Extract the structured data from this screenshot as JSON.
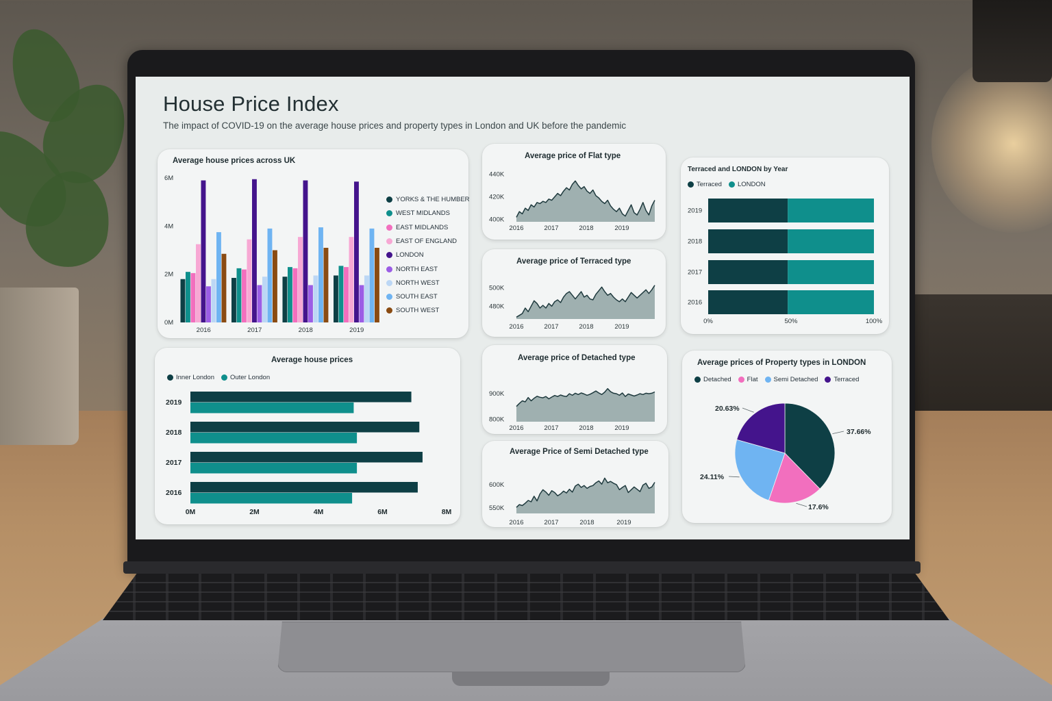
{
  "dashboard": {
    "title": "House Price Index",
    "subtitle": "The impact of COVID-19 on the average house prices and property types in London and UK before the pandemic"
  },
  "colors": {
    "teal_dark": "#0e3f45",
    "teal": "#0f8f8c",
    "area_fill": "#9fb0b0",
    "area_line": "#1f3a3e",
    "pink": "#f26fbe",
    "light_pink": "#f7a8d4",
    "purple": "#44148c",
    "violet": "#9b5de5",
    "pale_blue": "#bcd7f5",
    "sky_blue": "#6fb4f2",
    "brown": "#8a4b12"
  },
  "chart_data": [
    {
      "id": "uk_regions",
      "type": "bar",
      "title": "Average house prices across UK",
      "categories": [
        "2016",
        "2017",
        "2018",
        "2019"
      ],
      "y_ticks": [
        "0M",
        "2M",
        "4M",
        "6M"
      ],
      "ylim": [
        0,
        6000000
      ],
      "legend_position": "right",
      "series": [
        {
          "name": "YORKS & THE HUMBER",
          "color": "#0e3f45",
          "values": [
            1800000,
            1850000,
            1900000,
            1950000
          ]
        },
        {
          "name": "WEST MIDLANDS",
          "color": "#0f8f8c",
          "values": [
            2100000,
            2250000,
            2300000,
            2350000
          ]
        },
        {
          "name": "EAST MIDLANDS",
          "color": "#f26fbe",
          "values": [
            2050000,
            2200000,
            2250000,
            2300000
          ]
        },
        {
          "name": "EAST OF ENGLAND",
          "color": "#f7a8d4",
          "values": [
            3250000,
            3450000,
            3550000,
            3550000
          ]
        },
        {
          "name": "LONDON",
          "color": "#44148c",
          "values": [
            5900000,
            5950000,
            5900000,
            5850000
          ]
        },
        {
          "name": "NORTH EAST",
          "color": "#9b5de5",
          "values": [
            1500000,
            1550000,
            1550000,
            1550000
          ]
        },
        {
          "name": "NORTH WEST",
          "color": "#bcd7f5",
          "values": [
            1800000,
            1900000,
            1950000,
            1950000
          ]
        },
        {
          "name": "SOUTH EAST",
          "color": "#6fb4f2",
          "values": [
            3750000,
            3900000,
            3950000,
            3900000
          ]
        },
        {
          "name": "SOUTH WEST",
          "color": "#8a4b12",
          "values": [
            2850000,
            3000000,
            3100000,
            3100000
          ]
        }
      ]
    },
    {
      "id": "flat",
      "type": "area",
      "title": "Average price of Flat type",
      "x_ticks": [
        "2016",
        "2017",
        "2018",
        "2019"
      ],
      "y_ticks": [
        "400K",
        "420K",
        "440K"
      ],
      "ylim": [
        398000,
        445000
      ],
      "values": [
        402000,
        407000,
        405000,
        410000,
        408000,
        413000,
        411000,
        415000,
        414000,
        416000,
        415000,
        418000,
        417000,
        420000,
        423000,
        421000,
        425000,
        428000,
        426000,
        431000,
        434000,
        430000,
        427000,
        429000,
        425000,
        423000,
        426000,
        421000,
        419000,
        416000,
        414000,
        417000,
        412000,
        409000,
        407000,
        410000,
        405000,
        403000,
        408000,
        413000,
        406000,
        404000,
        409000,
        415000,
        408000,
        404000,
        412000,
        417000
      ]
    },
    {
      "id": "terraced",
      "type": "area",
      "title": "Average price of Terraced type",
      "x_ticks": [
        "2016",
        "2017",
        "2018",
        "2019"
      ],
      "y_ticks": [
        "480K",
        "500K"
      ],
      "ylim": [
        466000,
        520000
      ],
      "values": [
        468000,
        470000,
        472000,
        478000,
        474000,
        480000,
        486000,
        483000,
        478000,
        481000,
        478000,
        483000,
        480000,
        485000,
        487000,
        484000,
        490000,
        494000,
        496000,
        492000,
        488000,
        492000,
        496000,
        490000,
        492000,
        488000,
        487000,
        493000,
        497000,
        501000,
        496000,
        492000,
        494000,
        490000,
        487000,
        485000,
        488000,
        485000,
        490000,
        495000,
        492000,
        489000,
        492000,
        495000,
        498000,
        494000,
        498000,
        503000
      ]
    },
    {
      "id": "detached",
      "type": "area",
      "title": "Average price of Detached type",
      "x_ticks": [
        "2016",
        "2017",
        "2018",
        "2019"
      ],
      "y_ticks": [
        "800K",
        "900K"
      ],
      "ylim": [
        790000,
        1000000
      ],
      "values": [
        850000,
        862000,
        872000,
        868000,
        885000,
        872000,
        882000,
        890000,
        886000,
        884000,
        889000,
        880000,
        887000,
        893000,
        889000,
        895000,
        891000,
        889000,
        900000,
        894000,
        902000,
        897000,
        903000,
        899000,
        894000,
        898000,
        904000,
        911000,
        903000,
        897000,
        906000,
        920000,
        908000,
        902000,
        900000,
        894000,
        903000,
        889000,
        899000,
        895000,
        891000,
        895000,
        900000,
        897000,
        902000,
        900000,
        902000,
        907000
      ]
    },
    {
      "id": "semi_detached",
      "type": "area",
      "title": "Average Price of Semi Detached type",
      "x_ticks": [
        "2016",
        "2017",
        "2018",
        "2019"
      ],
      "y_ticks": [
        "550K",
        "600K"
      ],
      "ylim": [
        538000,
        650000
      ],
      "values": [
        551000,
        557000,
        555000,
        560000,
        566000,
        563000,
        575000,
        565000,
        580000,
        589000,
        584000,
        577000,
        587000,
        583000,
        576000,
        580000,
        586000,
        582000,
        590000,
        584000,
        597000,
        601000,
        594000,
        598000,
        592000,
        596000,
        598000,
        604000,
        608000,
        601000,
        614000,
        604000,
        607000,
        603000,
        600000,
        589000,
        594000,
        598000,
        583000,
        589000,
        595000,
        590000,
        585000,
        599000,
        603000,
        592000,
        595000,
        605000
      ]
    },
    {
      "id": "terraced_london",
      "type": "bar",
      "orientation": "horizontal",
      "stacked": "percent",
      "title": "Terraced and LONDON by Year",
      "categories": [
        "2019",
        "2018",
        "2017",
        "2016"
      ],
      "x_ticks": [
        "0%",
        "50%",
        "100%"
      ],
      "legend_position": "top-left",
      "series": [
        {
          "name": "Terraced",
          "color": "#0e3f45",
          "values": [
            48,
            48,
            48,
            48
          ]
        },
        {
          "name": "LONDON",
          "color": "#0f8f8c",
          "values": [
            52,
            52,
            52,
            52
          ]
        }
      ]
    },
    {
      "id": "inner_outer",
      "type": "bar",
      "orientation": "horizontal",
      "title": "Average house prices",
      "categories": [
        "2019",
        "2018",
        "2017",
        "2016"
      ],
      "x_ticks": [
        "0M",
        "2M",
        "4M",
        "6M",
        "8M"
      ],
      "xlim": [
        0,
        8000000
      ],
      "legend_position": "top-left",
      "series": [
        {
          "name": "Inner London",
          "color": "#0e3f45",
          "values": [
            6900000,
            7150000,
            7250000,
            7100000
          ]
        },
        {
          "name": "Outer London",
          "color": "#0f8f8c",
          "values": [
            5100000,
            5200000,
            5200000,
            5050000
          ]
        }
      ]
    },
    {
      "id": "property_types",
      "type": "pie",
      "title": "Average prices of Property types in LONDON",
      "legend_position": "top",
      "slices": [
        {
          "name": "Detached",
          "value": 37.66,
          "label": "37.66%",
          "color": "#0e3f45"
        },
        {
          "name": "Flat",
          "value": 17.6,
          "label": "17.6%",
          "color": "#f26fbe"
        },
        {
          "name": "Semi Detached",
          "value": 24.11,
          "label": "24.11%",
          "color": "#6fb4f2"
        },
        {
          "name": "Terraced",
          "value": 20.63,
          "label": "20.63%",
          "color": "#44148c"
        }
      ]
    }
  ]
}
